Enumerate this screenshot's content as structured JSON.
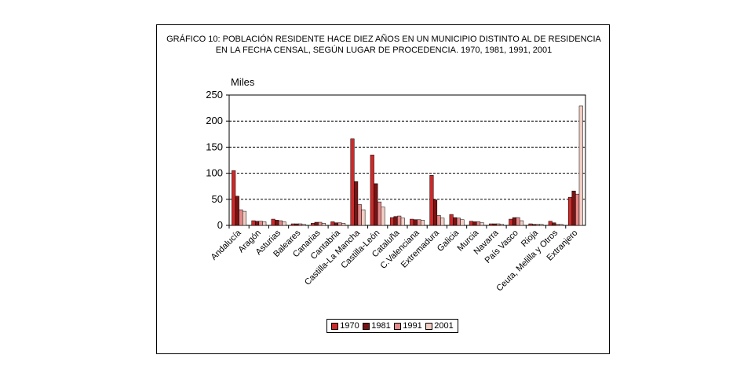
{
  "chart_data": {
    "type": "bar",
    "title_lines": [
      "GRÁFICO 10: POBLACIÓN RESIDENTE HACE DIEZ AÑOS EN UN MUNICIPIO DISTINTO AL DE RESIDENCIA",
      "EN LA FECHA CENSAL, SEGÚN LUGAR DE PROCEDENCIA. 1970, 1981, 1991, 2001"
    ],
    "ylabel": "Miles",
    "xlabel": "",
    "ylim": [
      0,
      250
    ],
    "yticks": [
      0,
      50,
      100,
      150,
      200,
      250
    ],
    "grid": "horizontal-dashed",
    "legend_position": "bottom",
    "categories": [
      "Andalucía",
      "Aragón",
      "Asturias",
      "Baleares",
      "Canarias",
      "Cantabria",
      "Castilla-La Mancha",
      "Castilla-León",
      "Cataluña",
      "C.Valenciana",
      "Extremadura",
      "Galicia",
      "Murcia",
      "Navarra",
      "País Vasco",
      "Rioja",
      "Ceuta, Melilla y Otros",
      "Extranjero"
    ],
    "series": [
      {
        "name": "1970",
        "color": "#cc2a2a",
        "values": [
          105,
          9,
          12,
          3,
          4,
          7,
          166,
          135,
          15,
          12,
          96,
          21,
          8,
          3,
          12,
          3,
          8,
          54
        ]
      },
      {
        "name": "1981",
        "color": "#7a1313",
        "values": [
          56,
          8,
          10,
          3,
          6,
          5,
          84,
          80,
          17,
          11,
          49,
          15,
          7,
          3,
          15,
          2,
          5,
          66
        ]
      },
      {
        "name": "1991",
        "color": "#e58a8a",
        "values": [
          30,
          8,
          9,
          3,
          6,
          5,
          40,
          45,
          18,
          11,
          19,
          14,
          7,
          3,
          15,
          2,
          2,
          60
        ]
      },
      {
        "name": "2001",
        "color": "#f2cdc4",
        "values": [
          27,
          7,
          7,
          2,
          4,
          4,
          30,
          35,
          14,
          10,
          14,
          11,
          5,
          2,
          9,
          2,
          2,
          229
        ]
      }
    ]
  }
}
